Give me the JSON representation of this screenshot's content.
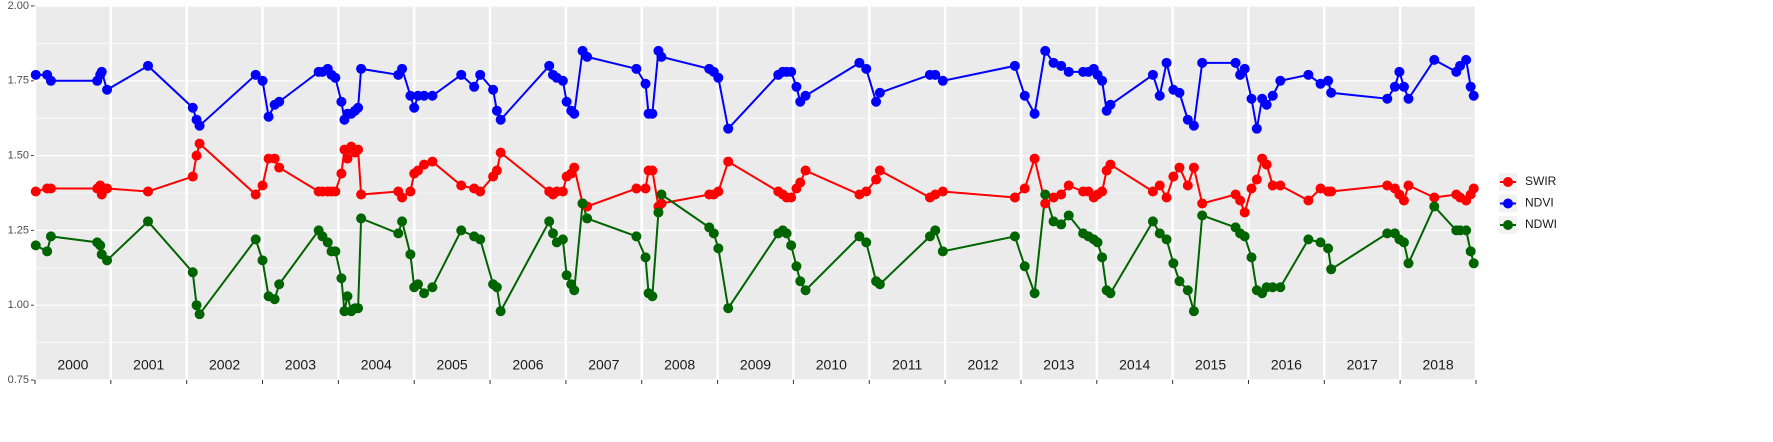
{
  "chart_data": {
    "type": "line",
    "xlim": [
      2000,
      2019
    ],
    "xticks": [
      2000,
      2001,
      2002,
      2003,
      2004,
      2005,
      2006,
      2007,
      2008,
      2009,
      2010,
      2011,
      2012,
      2013,
      2014,
      2015,
      2016,
      2017,
      2018,
      2019
    ],
    "year_labels": [
      "2000",
      "2001",
      "2002",
      "2003",
      "2004",
      "2005",
      "2006",
      "2007",
      "2008",
      "2009",
      "2010",
      "2011",
      "2012",
      "2013",
      "2014",
      "2015",
      "2016",
      "2017",
      "2018"
    ],
    "ylim": [
      0.75,
      2.0
    ],
    "yticks": [
      0.75,
      {
        "value": 1.0,
        "label": "1.00"
      },
      1.25,
      {
        "value": 1.5,
        "label": "1.50"
      },
      1.75,
      {
        "value": 2.0,
        "label": "2.00"
      }
    ],
    "grid": true,
    "legend": "right",
    "x": [
      2000.01,
      2000.16,
      2000.21,
      2000.82,
      2000.86,
      2000.88,
      2000.95,
      2001.49,
      2002.08,
      2002.13,
      2002.17,
      2002.91,
      2003.0,
      2003.08,
      2003.16,
      2003.22,
      2003.74,
      2003.79,
      2003.86,
      2003.91,
      2003.96,
      2004.04,
      2004.08,
      2004.12,
      2004.17,
      2004.22,
      2004.26,
      2004.3,
      2004.79,
      2004.84,
      2004.95,
      2005.0,
      2005.05,
      2005.13,
      2005.24,
      2005.62,
      2005.79,
      2005.87,
      2006.04,
      2006.09,
      2006.14,
      2006.78,
      2006.83,
      2006.88,
      2006.96,
      2007.01,
      2007.07,
      2007.11,
      2007.22,
      2007.28,
      2007.93,
      2008.05,
      2008.09,
      2008.14,
      2008.22,
      2008.26,
      2008.89,
      2008.95,
      2009.01,
      2009.14,
      2009.8,
      2009.86,
      2009.91,
      2009.97,
      2010.04,
      2010.09,
      2010.16,
      2010.87,
      2010.96,
      2011.09,
      2011.14,
      2011.8,
      2011.87,
      2011.97,
      2012.92,
      2013.05,
      2013.18,
      2013.32,
      2013.43,
      2013.53,
      2013.63,
      2013.82,
      2013.89,
      2013.96,
      2014.01,
      2014.07,
      2014.13,
      2014.18,
      2014.74,
      2014.83,
      2014.92,
      2015.01,
      2015.09,
      2015.2,
      2015.28,
      2015.39,
      2015.83,
      2015.89,
      2015.95,
      2016.04,
      2016.11,
      2016.18,
      2016.24,
      2016.32,
      2016.42,
      2016.79,
      2016.95,
      2017.05,
      2017.09,
      2017.83,
      2017.93,
      2017.99,
      2018.05,
      2018.11,
      2018.45,
      2018.74,
      2018.79,
      2018.87,
      2018.93,
      2018.97
    ],
    "series": [
      {
        "name": "SWIR",
        "color": "#ff0000",
        "values": [
          1.38,
          1.39,
          1.39,
          1.39,
          1.4,
          1.37,
          1.39,
          1.38,
          1.43,
          1.5,
          1.54,
          1.37,
          1.4,
          1.49,
          1.49,
          1.46,
          1.38,
          1.38,
          1.38,
          1.38,
          1.38,
          1.44,
          1.52,
          1.49,
          1.53,
          1.51,
          1.52,
          1.37,
          1.38,
          1.36,
          1.38,
          1.44,
          1.45,
          1.47,
          1.48,
          1.4,
          1.39,
          1.38,
          1.43,
          1.45,
          1.51,
          1.38,
          1.37,
          1.38,
          1.38,
          1.43,
          1.44,
          1.46,
          1.34,
          1.33,
          1.39,
          1.39,
          1.45,
          1.45,
          1.33,
          1.34,
          1.37,
          1.37,
          1.38,
          1.48,
          1.38,
          1.37,
          1.36,
          1.36,
          1.39,
          1.41,
          1.45,
          1.37,
          1.38,
          1.42,
          1.45,
          1.36,
          1.37,
          1.38,
          1.36,
          1.39,
          1.49,
          1.34,
          1.36,
          1.37,
          1.4,
          1.38,
          1.38,
          1.36,
          1.37,
          1.38,
          1.45,
          1.47,
          1.38,
          1.4,
          1.36,
          1.43,
          1.46,
          1.4,
          1.46,
          1.34,
          1.37,
          1.35,
          1.31,
          1.39,
          1.42,
          1.49,
          1.47,
          1.4,
          1.4,
          1.35,
          1.39,
          1.38,
          1.38,
          1.4,
          1.39,
          1.37,
          1.35,
          1.4,
          1.36,
          1.37,
          1.36,
          1.35,
          1.37,
          1.39
        ]
      },
      {
        "name": "NDVI",
        "color": "#0000ff",
        "values": [
          1.77,
          1.77,
          1.75,
          1.75,
          1.77,
          1.78,
          1.72,
          1.8,
          1.66,
          1.62,
          1.6,
          1.77,
          1.75,
          1.63,
          1.67,
          1.68,
          1.78,
          1.78,
          1.79,
          1.77,
          1.76,
          1.68,
          1.62,
          1.64,
          1.64,
          1.65,
          1.66,
          1.79,
          1.77,
          1.79,
          1.7,
          1.66,
          1.7,
          1.7,
          1.7,
          1.77,
          1.73,
          1.77,
          1.72,
          1.65,
          1.62,
          1.8,
          1.77,
          1.76,
          1.75,
          1.68,
          1.65,
          1.64,
          1.85,
          1.83,
          1.79,
          1.74,
          1.64,
          1.64,
          1.85,
          1.83,
          1.79,
          1.78,
          1.76,
          1.59,
          1.77,
          1.78,
          1.78,
          1.78,
          1.73,
          1.68,
          1.7,
          1.81,
          1.79,
          1.68,
          1.71,
          1.77,
          1.77,
          1.75,
          1.8,
          1.7,
          1.64,
          1.85,
          1.81,
          1.8,
          1.78,
          1.78,
          1.78,
          1.79,
          1.77,
          1.75,
          1.65,
          1.67,
          1.77,
          1.7,
          1.81,
          1.72,
          1.71,
          1.62,
          1.6,
          1.81,
          1.81,
          1.77,
          1.79,
          1.69,
          1.59,
          1.69,
          1.67,
          1.7,
          1.75,
          1.77,
          1.74,
          1.75,
          1.71,
          1.69,
          1.73,
          1.78,
          1.73,
          1.69,
          1.82,
          1.78,
          1.8,
          1.82,
          1.73,
          1.7
        ]
      },
      {
        "name": "NDWI",
        "color": "#006400",
        "values": [
          1.2,
          1.18,
          1.23,
          1.21,
          1.2,
          1.17,
          1.15,
          1.28,
          1.11,
          1.0,
          0.97,
          1.22,
          1.15,
          1.03,
          1.02,
          1.07,
          1.25,
          1.23,
          1.21,
          1.18,
          1.18,
          1.09,
          0.98,
          1.03,
          0.98,
          0.99,
          0.99,
          1.29,
          1.24,
          1.28,
          1.17,
          1.06,
          1.07,
          1.04,
          1.06,
          1.25,
          1.23,
          1.22,
          1.07,
          1.06,
          0.98,
          1.28,
          1.24,
          1.21,
          1.22,
          1.1,
          1.07,
          1.05,
          1.34,
          1.29,
          1.23,
          1.16,
          1.04,
          1.03,
          1.31,
          1.37,
          1.26,
          1.24,
          1.19,
          0.99,
          1.24,
          1.25,
          1.24,
          1.2,
          1.13,
          1.08,
          1.05,
          1.23,
          1.21,
          1.08,
          1.07,
          1.23,
          1.25,
          1.18,
          1.23,
          1.13,
          1.04,
          1.37,
          1.28,
          1.27,
          1.3,
          1.24,
          1.23,
          1.22,
          1.21,
          1.16,
          1.05,
          1.04,
          1.28,
          1.24,
          1.22,
          1.14,
          1.08,
          1.05,
          0.98,
          1.3,
          1.26,
          1.24,
          1.23,
          1.16,
          1.05,
          1.04,
          1.06,
          1.06,
          1.06,
          1.22,
          1.21,
          1.19,
          1.12,
          1.24,
          1.24,
          1.22,
          1.21,
          1.14,
          1.33,
          1.25,
          1.25,
          1.25,
          1.18,
          1.14
        ]
      }
    ]
  }
}
